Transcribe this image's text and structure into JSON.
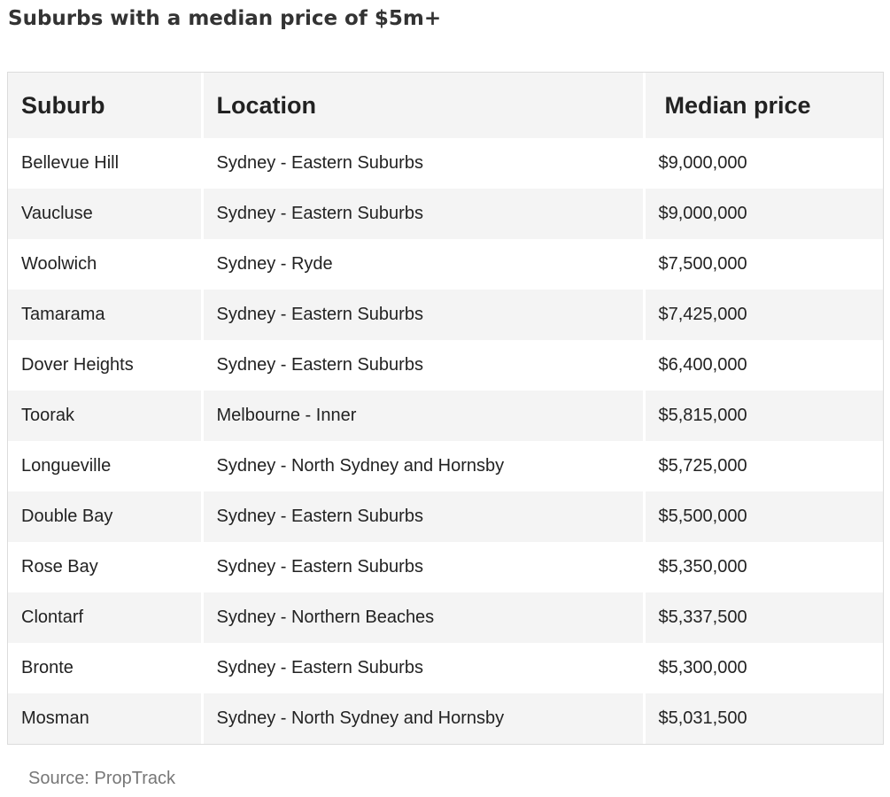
{
  "title": "Suburbs with a median price of $5m+",
  "table": {
    "headers": [
      "Suburb",
      "Location",
      "Median price"
    ],
    "rows": [
      [
        "Bellevue Hill",
        "Sydney - Eastern Suburbs",
        "$9,000,000"
      ],
      [
        "Vaucluse",
        "Sydney - Eastern Suburbs",
        "$9,000,000"
      ],
      [
        "Woolwich",
        "Sydney - Ryde",
        "$7,500,000"
      ],
      [
        "Tamarama",
        "Sydney - Eastern Suburbs",
        "$7,425,000"
      ],
      [
        "Dover Heights",
        "Sydney - Eastern Suburbs",
        "$6,400,000"
      ],
      [
        "Toorak",
        "Melbourne - Inner",
        "$5,815,000"
      ],
      [
        "Longueville",
        "Sydney - North Sydney and Hornsby",
        "$5,725,000"
      ],
      [
        "Double Bay",
        "Sydney - Eastern Suburbs",
        "$5,500,000"
      ],
      [
        "Rose Bay",
        "Sydney - Eastern Suburbs",
        "$5,350,000"
      ],
      [
        "Clontarf",
        "Sydney - Northern Beaches",
        "$5,337,500"
      ],
      [
        "Bronte",
        "Sydney - Eastern Suburbs",
        "$5,300,000"
      ],
      [
        "Mosman",
        "Sydney - North Sydney and Hornsby",
        "$5,031,500"
      ]
    ]
  },
  "source": "Source: PropTrack",
  "colors": {
    "header_bg": "#f4f4f4",
    "stripe_bg": "#f4f4f4",
    "text": "#222222",
    "source_text": "#777777"
  }
}
